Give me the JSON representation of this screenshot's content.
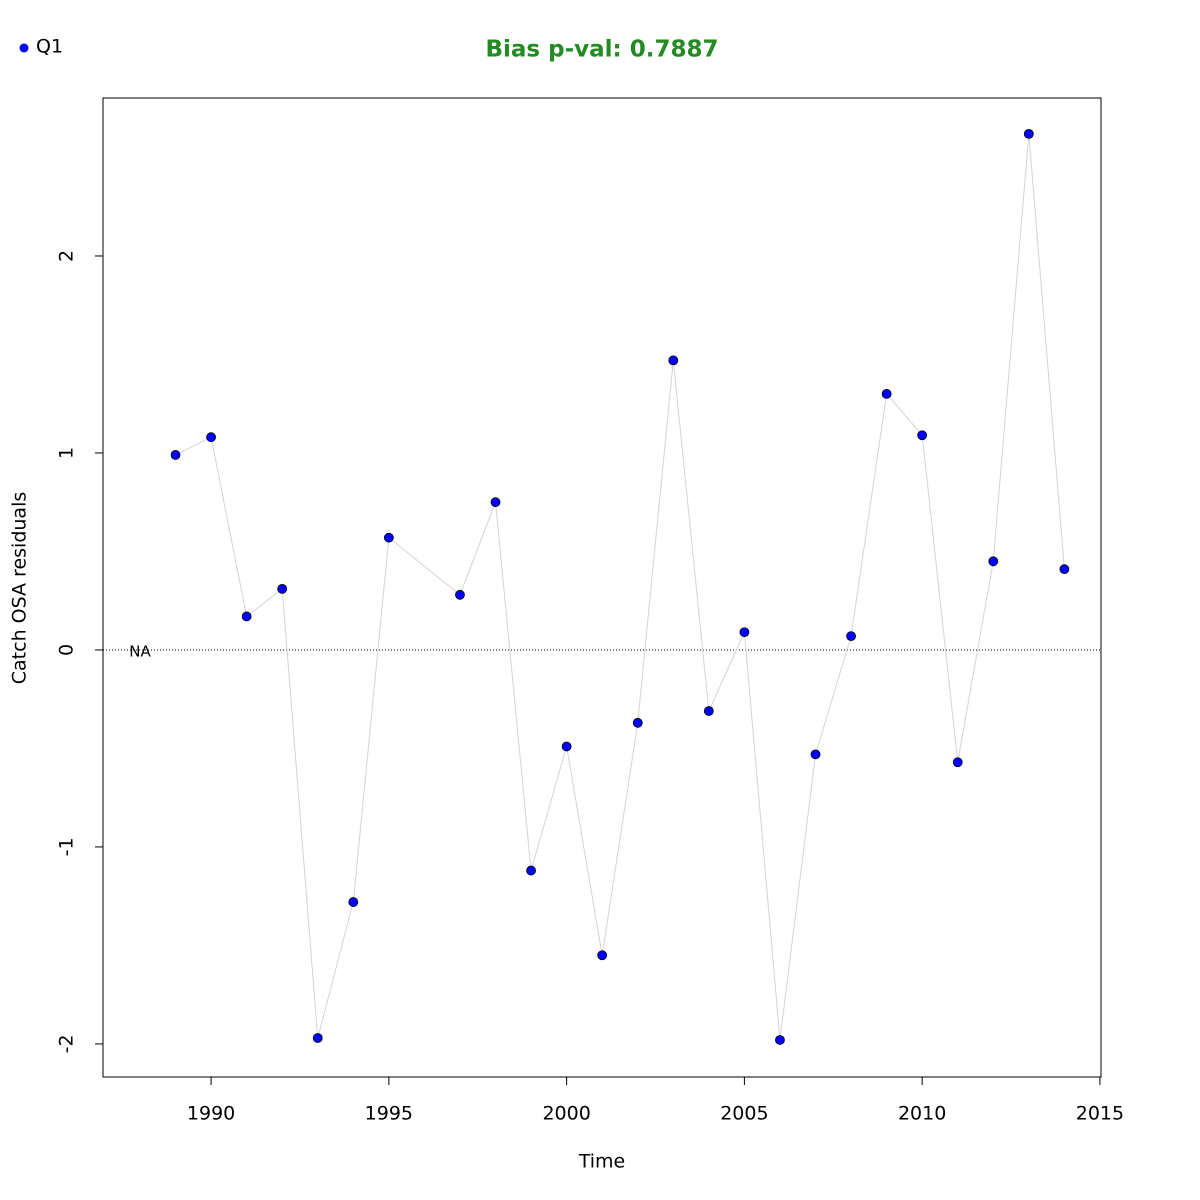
{
  "chart_data": {
    "type": "scatter",
    "title": "Bias p-val: 0.7887",
    "title_color": "#228b22",
    "x_label": "Time",
    "y_label": "Catch OSA residuals",
    "annotation": "NA",
    "x": [
      1989,
      1990,
      1991,
      1992,
      1993,
      1994,
      1995,
      1997,
      1998,
      1999,
      2000,
      2001,
      2002,
      2003,
      2004,
      2005,
      2006,
      2007,
      2008,
      2009,
      2010,
      2011,
      2012,
      2013,
      2014
    ],
    "series": [
      {
        "name": "Q1",
        "color": "#0000ff",
        "line_color": "#d3d3d3",
        "values": [
          0.99,
          1.08,
          0.17,
          0.31,
          -1.97,
          -1.28,
          0.57,
          0.28,
          0.75,
          -1.12,
          -0.49,
          -1.55,
          -0.37,
          1.47,
          -0.31,
          0.09,
          -1.98,
          -0.53,
          0.07,
          1.3,
          1.09,
          -0.57,
          0.45,
          2.62,
          0.41
        ]
      }
    ],
    "xlim": [
      1986.96,
      2015.03
    ],
    "xticks": [
      1990,
      1995,
      2000,
      2005,
      2010,
      2015
    ],
    "ylim": [
      -2.168,
      2.802
    ],
    "yticks": [
      -2,
      -1,
      0,
      1,
      2
    ],
    "hline": 0,
    "legend": "top-left"
  }
}
